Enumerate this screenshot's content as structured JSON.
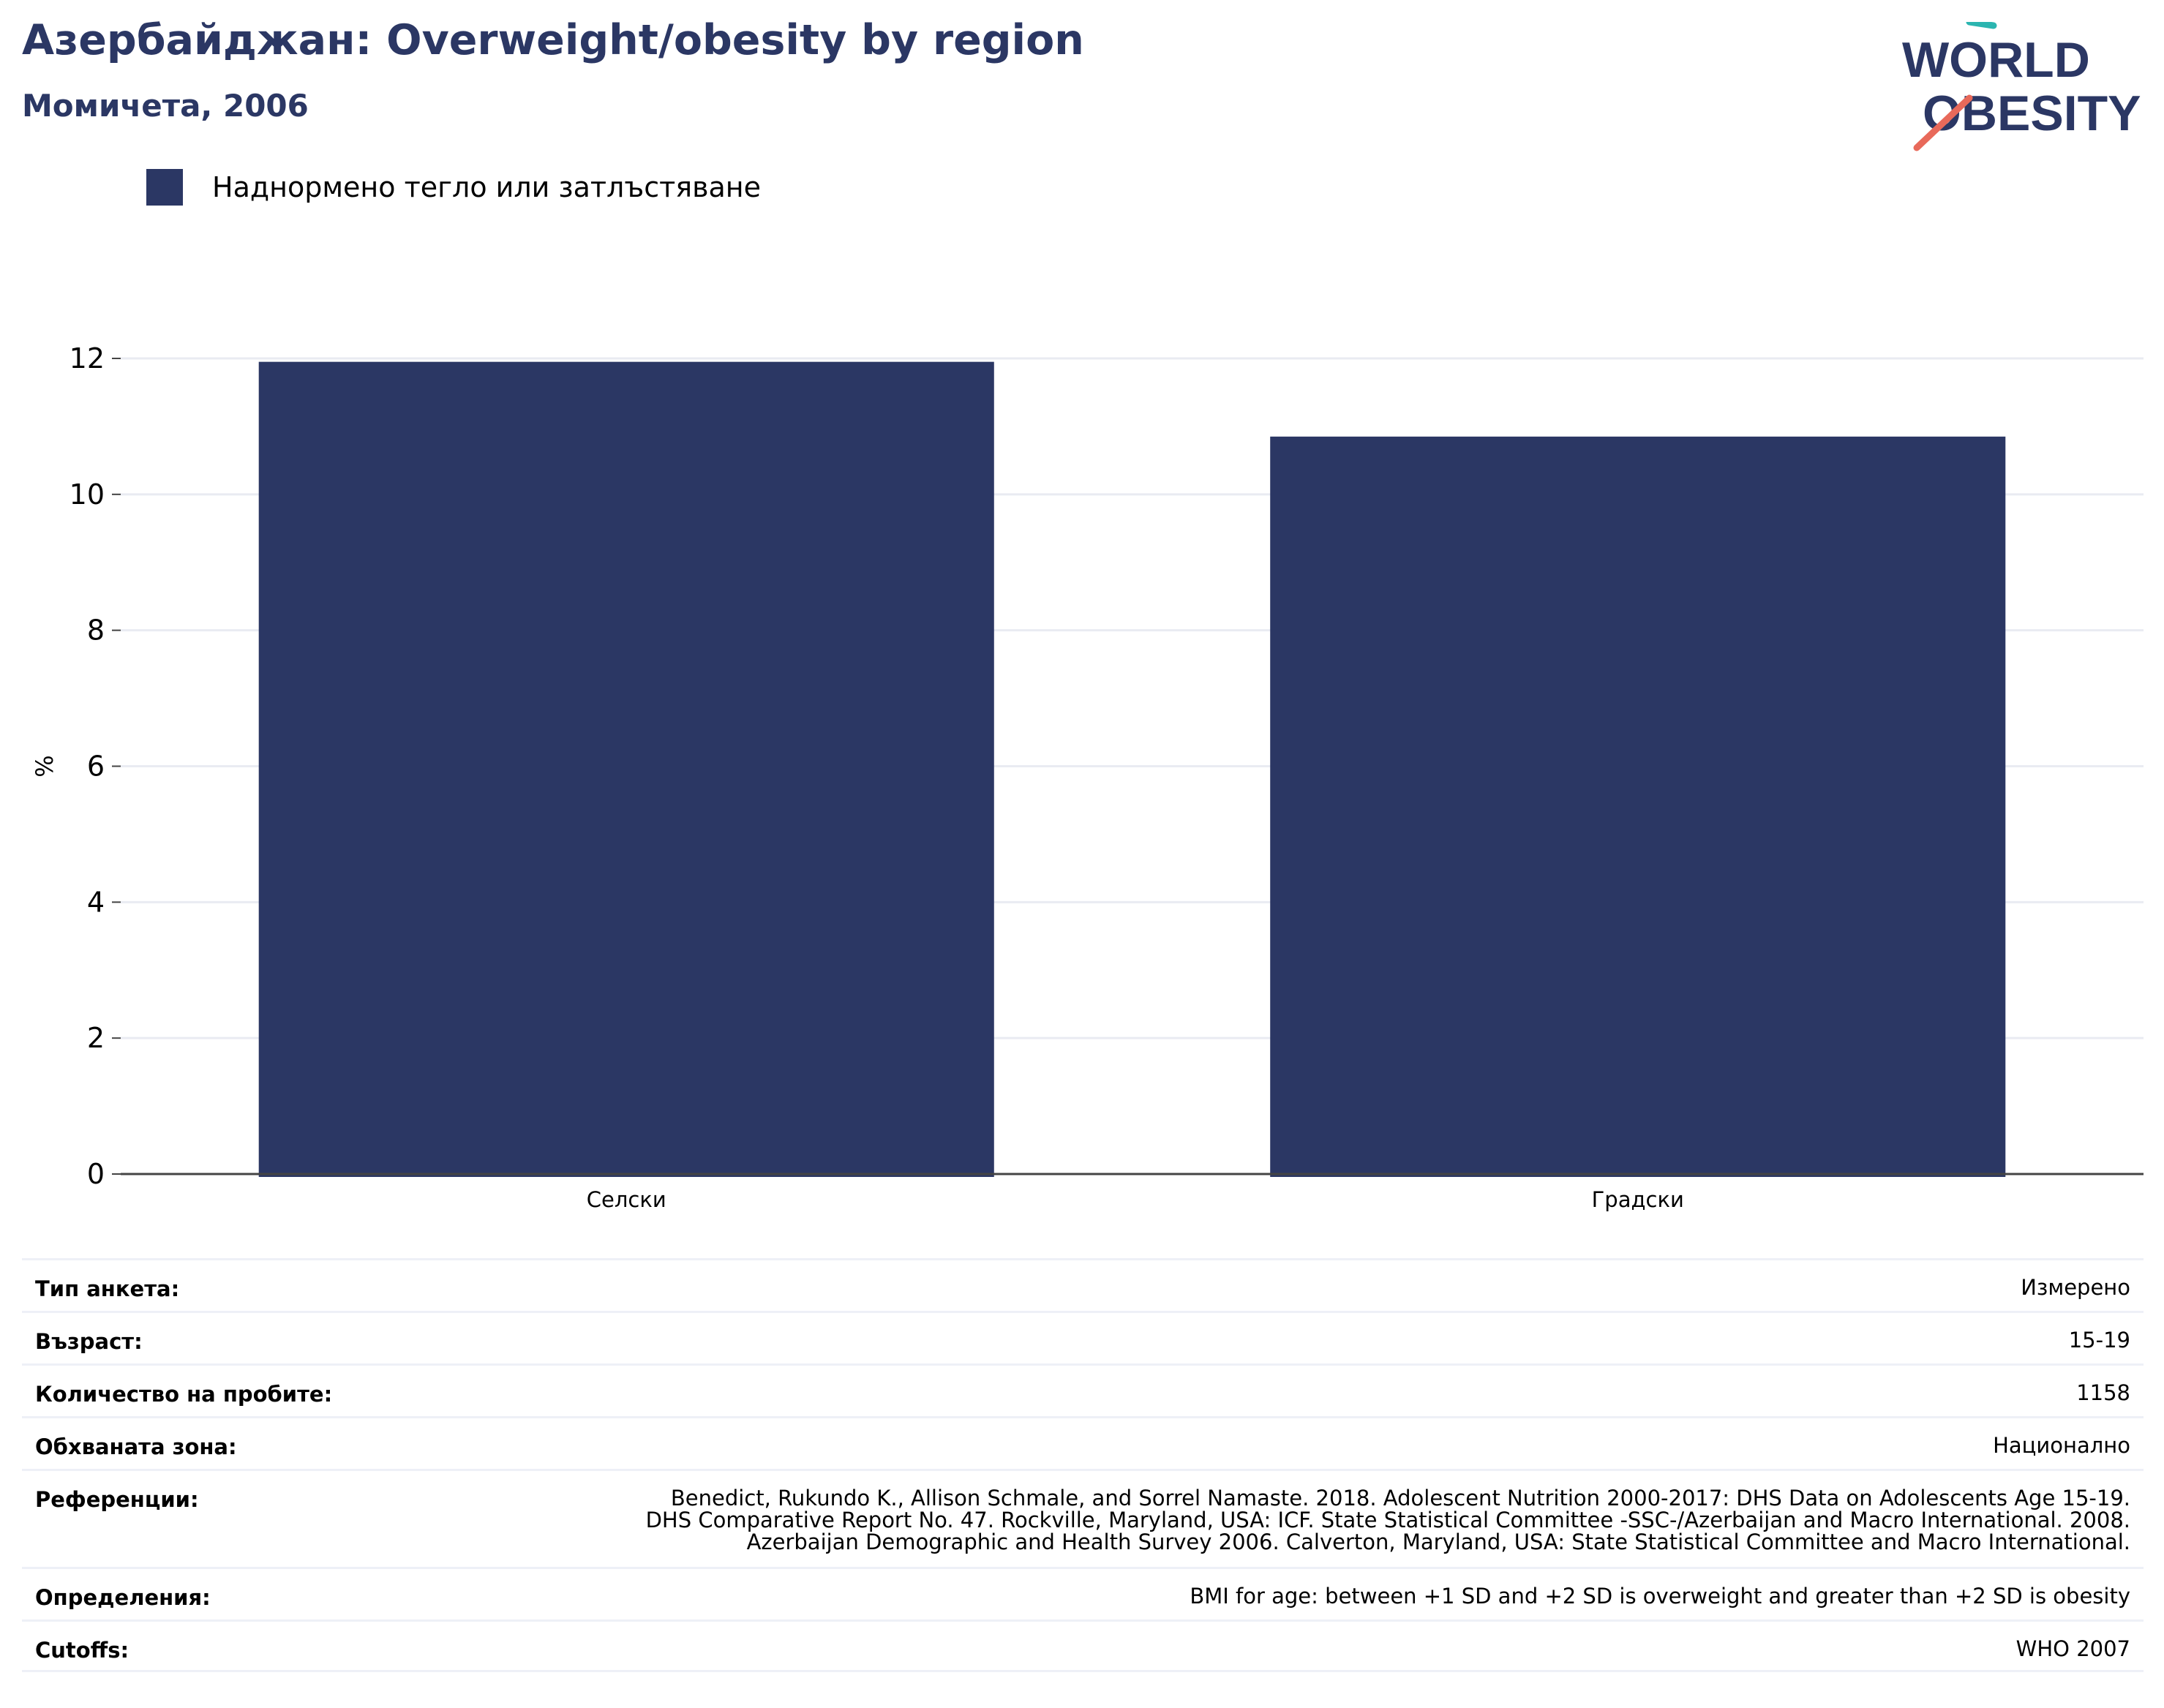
{
  "header": {
    "title": "Азербайджан: Overweight/obesity by region",
    "subtitle": "Момичета, 2006",
    "logo_text_line1": "WORLD",
    "logo_text_line2": "OBESITY"
  },
  "colors": {
    "bar": "#2b3764",
    "accent_teal": "#2bb5b0",
    "accent_coral": "#e8695a",
    "grid": "#e9ebf2"
  },
  "chart_data": {
    "type": "bar",
    "categories": [
      "Селски",
      "Градски"
    ],
    "series": [
      {
        "name": "Наднормено тегло или затлъстяване",
        "values": [
          11.95,
          10.85
        ]
      }
    ],
    "ylabel": "%",
    "ylim": [
      0,
      12
    ],
    "yticks": [
      "0",
      "2",
      "4",
      "6",
      "8",
      "10",
      "12"
    ],
    "grid": true,
    "legend_position": "top-left"
  },
  "meta": {
    "survey_type": {
      "label": "Тип анкета:",
      "value": "Измерено"
    },
    "age": {
      "label": "Възраст:",
      "value": "15-19"
    },
    "sample_size": {
      "label": "Количество на пробите:",
      "value": "1158"
    },
    "coverage": {
      "label": "Обхваната зона:",
      "value": "Национално"
    },
    "references": {
      "label": "Референции:",
      "lines": [
        "Benedict, Rukundo K., Allison Schmale, and Sorrel Namaste. 2018. Adolescent Nutrition 2000-2017: DHS Data on Adolescents Age 15-19.",
        "DHS Comparative Report No. 47. Rockville, Maryland, USA: ICF. State Statistical Committee -SSC-/Azerbaijan and Macro International. 2008.",
        "Azerbaijan Demographic and Health Survey 2006. Calverton, Maryland, USA: State Statistical Committee and Macro International."
      ]
    },
    "definitions": {
      "label": "Определения:",
      "value": "BMI for age: between +1 SD and +2 SD is overweight and greater than +2 SD is obesity"
    },
    "cutoffs": {
      "label": "Cutoffs:",
      "value": "WHO 2007"
    }
  }
}
